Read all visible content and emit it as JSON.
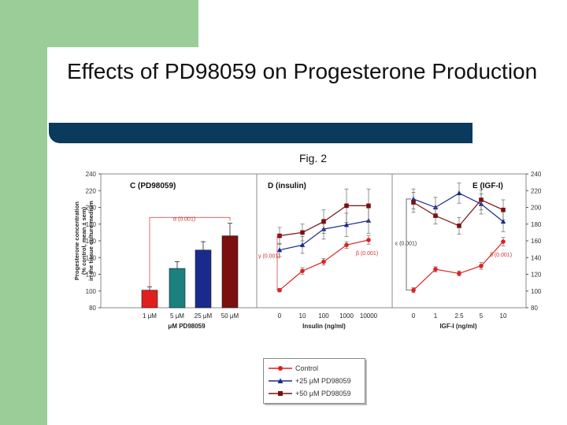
{
  "slide": {
    "title": "Effects of PD98059 on Progesterone Production",
    "figure_label": "Fig. 2"
  },
  "colors": {
    "red": "#e0201e",
    "blue": "#1a2a8c",
    "maroon": "#7a1010",
    "teal": "#1a8080",
    "green": "#9acd97",
    "navy": "#0a3a5c"
  },
  "chart_data": [
    {
      "type": "bar",
      "panel_label": "C (PD98059)",
      "categories": [
        "1 μM",
        "5 μM",
        "25 μM",
        "50 μM"
      ],
      "values": [
        101,
        127,
        149,
        166
      ],
      "errors": [
        4,
        8,
        10,
        15
      ],
      "bar_colors": [
        "#e0201e",
        "#1a8080",
        "#1a2a8c",
        "#7a1010"
      ],
      "xlabel": "μM PD98059",
      "ylabel_lines": [
        "Progesterone concentration",
        "(% control, mean ± sem)",
        "in the tissue culture medium"
      ],
      "ylim": [
        80,
        240
      ],
      "yticks": [
        "80",
        "100",
        "120",
        "140",
        "160",
        "180",
        "200",
        "220",
        "240"
      ],
      "annotation": "α (0.001)"
    },
    {
      "type": "line",
      "panel_label": "D (insulin)",
      "categories": [
        "0",
        "10",
        "100",
        "1000",
        "10000"
      ],
      "xlabel": "Insulin (ng/ml)",
      "ylim": [
        80,
        240
      ],
      "series": [
        {
          "name": "Control",
          "values": [
            101,
            124,
            135,
            155,
            161
          ],
          "errors": [
            2,
            4,
            4,
            4,
            5
          ]
        },
        {
          "name": "+25 μM PD98059",
          "values": [
            149,
            155,
            174,
            179,
            184
          ],
          "errors": [
            8,
            10,
            12,
            14,
            15
          ]
        },
        {
          "name": "+50 μM PD98059",
          "values": [
            166,
            170,
            183,
            202,
            202
          ],
          "errors": [
            10,
            10,
            14,
            20,
            20
          ]
        }
      ],
      "annotations": [
        "γ (0.001)",
        "β (0.001)"
      ]
    },
    {
      "type": "line",
      "panel_label": "E (IGF-I)",
      "categories": [
        "0",
        "1",
        "2.5",
        "5",
        "10"
      ],
      "xlabel": "IGF-I (ng/ml)",
      "ylim": [
        80,
        240
      ],
      "yticks": [
        "80",
        "100",
        "120",
        "140",
        "160",
        "180",
        "200",
        "220",
        "240"
      ],
      "series": [
        {
          "name": "Control",
          "values": [
            101,
            126,
            121,
            130,
            159
          ],
          "errors": [
            3,
            3,
            3,
            4,
            5
          ]
        },
        {
          "name": "+25 μM PD98059",
          "values": [
            210,
            200,
            217,
            204,
            183
          ],
          "errors": [
            12,
            12,
            12,
            12,
            12
          ]
        },
        {
          "name": "+50 μM PD98059",
          "values": [
            206,
            190,
            178,
            209,
            197
          ],
          "errors": [
            12,
            10,
            10,
            12,
            12
          ]
        }
      ],
      "annotations": [
        "ε (0.001)",
        "δ (0.001)"
      ]
    }
  ],
  "legend": {
    "items": [
      "Control",
      "+25 μM PD98059",
      "+50 μM PD98059"
    ]
  }
}
